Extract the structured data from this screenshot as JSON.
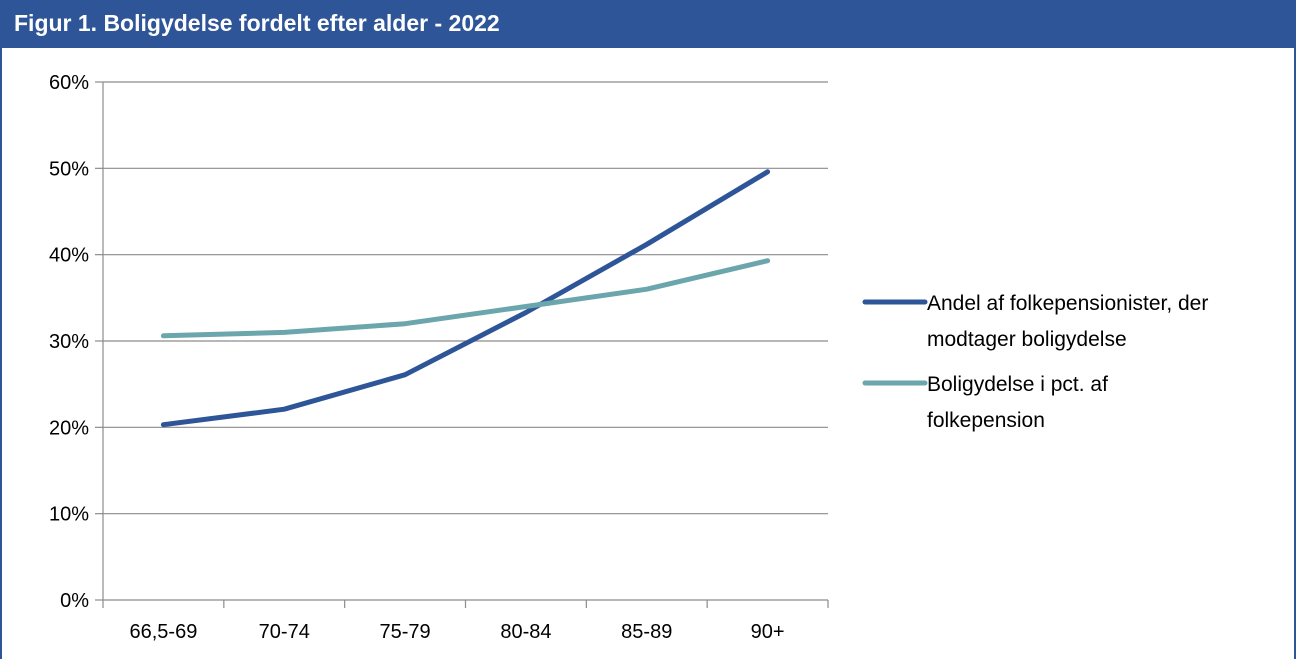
{
  "header": {
    "title": "Figur 1. Boligydelse fordelt efter alder - 2022"
  },
  "colors": {
    "header_bg": "#2e5597",
    "series_1": "#2e5597",
    "series_2": "#6aa6ab",
    "gridline": "#8c8c8c"
  },
  "chart_data": {
    "type": "line",
    "title": "Figur 1. Boligydelse fordelt efter alder - 2022",
    "xlabel": "",
    "ylabel": "",
    "categories": [
      "66,5-69",
      "70-74",
      "75-79",
      "80-84",
      "85-89",
      "90+"
    ],
    "y_ticks": [
      "0%",
      "10%",
      "20%",
      "30%",
      "40%",
      "50%",
      "60%"
    ],
    "ylim": [
      0,
      60
    ],
    "y_unit": "%",
    "grid": true,
    "legend_position": "right",
    "series": [
      {
        "name": "Andel af folkepensionister, der modtager boligydelse",
        "name_lines": [
          "Andel af folkepensionister, der",
          "modtager boligydelse"
        ],
        "color": "#2e5597",
        "values": [
          20.3,
          22.1,
          26.1,
          33.3,
          41.2,
          49.6
        ]
      },
      {
        "name": "Boligydelse i pct. af folkepension",
        "name_lines": [
          "Boligydelse i pct. af",
          "folkepension"
        ],
        "color": "#6aa6ab",
        "values": [
          30.6,
          31.0,
          32.0,
          34.0,
          36.0,
          39.3
        ]
      }
    ]
  }
}
